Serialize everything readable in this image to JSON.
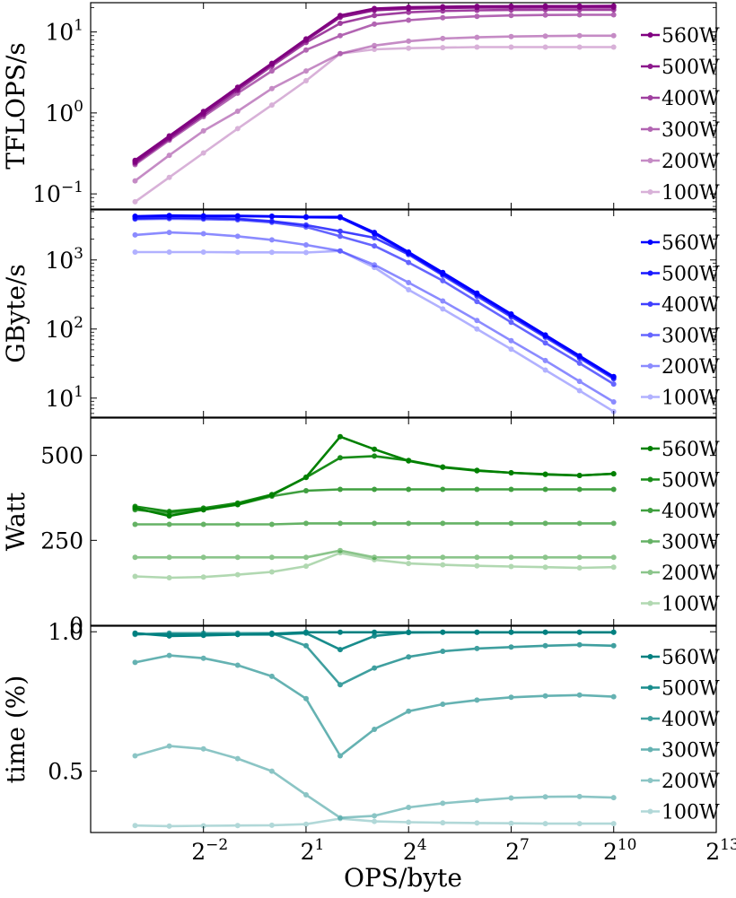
{
  "x_axis": {
    "label": "OPS/byte",
    "ticks": [
      {
        "exp": -2,
        "base": "2",
        "sup": "−2"
      },
      {
        "exp": 1,
        "base": "2",
        "sup": "1"
      },
      {
        "exp": 4,
        "base": "2",
        "sup": "4"
      },
      {
        "exp": 7,
        "base": "2",
        "sup": "7"
      },
      {
        "exp": 10,
        "base": "2",
        "sup": "10"
      },
      {
        "exp": 13,
        "base": "2",
        "sup": "13"
      }
    ]
  },
  "legend_labels": [
    "560W",
    "500W",
    "400W",
    "300W",
    "200W",
    "100W"
  ],
  "chart_data": [
    {
      "type": "line",
      "scale": "log",
      "ylabel": "TFLOPS/s",
      "ylim": [
        0.065,
        23
      ],
      "yticks": [
        {
          "v": 10,
          "base": "10",
          "sup": "1"
        },
        {
          "v": 1,
          "base": "10",
          "sup": "0"
        },
        {
          "v": 0.1,
          "base": "10",
          "sup": "−1"
        }
      ],
      "x_log2": [
        -4,
        -3,
        -2,
        -1,
        0,
        1,
        2,
        3,
        4,
        5,
        6,
        7,
        8,
        9,
        10
      ],
      "series": [
        {
          "name": "560W",
          "color": "#800080",
          "alpha": 1.0,
          "values": [
            0.26,
            0.52,
            1.04,
            2.08,
            4.1,
            8.2,
            16,
            19.5,
            20.2,
            20.5,
            20.7,
            20.8,
            20.9,
            20.9,
            21.0
          ]
        },
        {
          "name": "500W",
          "color": "#800080",
          "alpha": 0.9,
          "values": [
            0.25,
            0.5,
            1.0,
            2.0,
            4.0,
            7.9,
            15.2,
            18.5,
            19.4,
            19.8,
            20.0,
            20.1,
            20.2,
            20.2,
            20.2
          ]
        },
        {
          "name": "400W",
          "color": "#800080",
          "alpha": 0.75,
          "values": [
            0.24,
            0.48,
            0.95,
            1.9,
            3.8,
            7.4,
            12.8,
            16.0,
            17.5,
            18.2,
            18.5,
            18.7,
            18.8,
            18.8,
            18.8
          ]
        },
        {
          "name": "300W",
          "color": "#800080",
          "alpha": 0.6,
          "values": [
            0.23,
            0.46,
            0.9,
            1.75,
            3.3,
            6.0,
            9.0,
            12.5,
            14.0,
            15.0,
            15.6,
            16.0,
            16.2,
            16.3,
            16.3
          ]
        },
        {
          "name": "200W",
          "color": "#800080",
          "alpha": 0.45,
          "values": [
            0.145,
            0.3,
            0.6,
            1.05,
            2.0,
            3.3,
            5.4,
            6.8,
            7.7,
            8.3,
            8.6,
            8.8,
            8.9,
            9.0,
            9.0
          ]
        },
        {
          "name": "100W",
          "color": "#800080",
          "alpha": 0.3,
          "values": [
            0.08,
            0.16,
            0.32,
            0.64,
            1.25,
            2.5,
            5.4,
            6.1,
            6.3,
            6.4,
            6.5,
            6.5,
            6.5,
            6.5,
            6.5
          ]
        }
      ]
    },
    {
      "type": "line",
      "scale": "log",
      "ylabel": "GByte/s",
      "ylim": [
        5.3,
        5300
      ],
      "yticks": [
        {
          "v": 1000,
          "base": "10",
          "sup": "3"
        },
        {
          "v": 100,
          "base": "10",
          "sup": "2"
        },
        {
          "v": 10,
          "base": "10",
          "sup": "1"
        }
      ],
      "x_log2": [
        -4,
        -3,
        -2,
        -1,
        0,
        1,
        2,
        3,
        4,
        5,
        6,
        7,
        8,
        9,
        10
      ],
      "series": [
        {
          "name": "560W",
          "color": "#0000ff",
          "alpha": 1.0,
          "values": [
            4300,
            4400,
            4350,
            4350,
            4300,
            4200,
            4200,
            2500,
            1300,
            660,
            330,
            165,
            82,
            41,
            20.5
          ]
        },
        {
          "name": "500W",
          "color": "#0000ff",
          "alpha": 0.9,
          "values": [
            4250,
            4350,
            4300,
            4300,
            4250,
            4150,
            4100,
            2400,
            1250,
            630,
            320,
            160,
            80,
            40,
            20
          ]
        },
        {
          "name": "400W",
          "color": "#0000ff",
          "alpha": 0.75,
          "values": [
            4000,
            4100,
            4050,
            3950,
            3650,
            3200,
            2600,
            2100,
            1200,
            600,
            300,
            150,
            76,
            38,
            19
          ]
        },
        {
          "name": "300W",
          "color": "#0000ff",
          "alpha": 0.6,
          "values": [
            3900,
            3950,
            3900,
            3800,
            3500,
            3000,
            2200,
            1600,
            920,
            500,
            250,
            125,
            63,
            32,
            16
          ]
        },
        {
          "name": "200W",
          "color": "#0000ff",
          "alpha": 0.45,
          "values": [
            2300,
            2500,
            2400,
            2200,
            1950,
            1650,
            1350,
            850,
            470,
            255,
            133,
            68,
            35,
            17.5,
            8.8
          ]
        },
        {
          "name": "100W",
          "color": "#0000ff",
          "alpha": 0.3,
          "values": [
            1300,
            1300,
            1300,
            1290,
            1290,
            1280,
            1350,
            780,
            370,
            195,
            100,
            51,
            25.5,
            12.8,
            6.4
          ]
        }
      ]
    },
    {
      "type": "line",
      "scale": "linear",
      "ylabel": "Watt",
      "ylim": [
        0,
        610
      ],
      "yticks": [
        {
          "v": 500,
          "label": "500"
        },
        {
          "v": 250,
          "label": "250"
        },
        {
          "v": 0,
          "label": "0"
        }
      ],
      "x_log2": [
        -4,
        -3,
        -2,
        -1,
        0,
        1,
        2,
        3,
        4,
        5,
        6,
        7,
        8,
        9,
        10
      ],
      "series": [
        {
          "name": "560W",
          "color": "#008000",
          "alpha": 1.0,
          "values": [
            345,
            322,
            340,
            356,
            383,
            436,
            555,
            518,
            484,
            465,
            455,
            449,
            444,
            441,
            446
          ]
        },
        {
          "name": "500W",
          "color": "#008000",
          "alpha": 0.9,
          "values": [
            350,
            335,
            345,
            360,
            385,
            435,
            493,
            498,
            485,
            466,
            456,
            449,
            445,
            441,
            446
          ]
        },
        {
          "name": "400W",
          "color": "#008000",
          "alpha": 0.75,
          "values": [
            340,
            330,
            340,
            355,
            380,
            396,
            400,
            400,
            400,
            400,
            400,
            400,
            400,
            400,
            400
          ]
        },
        {
          "name": "300W",
          "color": "#008000",
          "alpha": 0.6,
          "values": [
            297,
            297,
            297,
            297,
            297,
            300,
            300,
            300,
            300,
            300,
            300,
            300,
            300,
            300,
            300
          ]
        },
        {
          "name": "200W",
          "color": "#008000",
          "alpha": 0.45,
          "values": [
            200,
            200,
            200,
            200,
            200,
            200,
            220,
            200,
            200,
            200,
            200,
            200,
            200,
            200,
            200
          ]
        },
        {
          "name": "100W",
          "color": "#008000",
          "alpha": 0.3,
          "values": [
            144,
            140,
            142,
            149,
            157,
            174,
            213,
            193,
            182,
            178,
            175,
            173,
            171,
            169,
            171
          ]
        }
      ]
    },
    {
      "type": "line",
      "scale": "linear",
      "ylabel": "time (%)",
      "ylim": [
        0.28,
        1.02
      ],
      "yticks": [
        {
          "v": 1.0,
          "label": "1.0"
        },
        {
          "v": 0.5,
          "label": "0.5"
        }
      ],
      "x_log2": [
        -4,
        -3,
        -2,
        -1,
        0,
        1,
        2,
        3,
        4,
        5,
        6,
        7,
        8,
        9,
        10
      ],
      "series": [
        {
          "name": "560W",
          "color": "#008080",
          "alpha": 1.0,
          "values": [
            0.995,
            0.985,
            0.987,
            0.99,
            0.993,
            0.998,
            0.998,
            0.998,
            0.998,
            0.998,
            0.998,
            0.998,
            0.998,
            0.998,
            0.998
          ]
        },
        {
          "name": "500W",
          "color": "#008080",
          "alpha": 0.9,
          "values": [
            0.993,
            0.99,
            0.99,
            0.99,
            0.99,
            0.995,
            0.936,
            0.985,
            0.997,
            0.998,
            0.998,
            0.998,
            0.998,
            0.998,
            0.998
          ]
        },
        {
          "name": "400W",
          "color": "#008080",
          "alpha": 0.75,
          "values": [
            0.99,
            0.995,
            0.995,
            0.995,
            0.995,
            0.95,
            0.81,
            0.87,
            0.91,
            0.93,
            0.94,
            0.945,
            0.95,
            0.953,
            0.95
          ]
        },
        {
          "name": "300W",
          "color": "#008080",
          "alpha": 0.6,
          "values": [
            0.89,
            0.915,
            0.905,
            0.88,
            0.84,
            0.76,
            0.555,
            0.65,
            0.715,
            0.74,
            0.755,
            0.765,
            0.77,
            0.773,
            0.767
          ]
        },
        {
          "name": "200W",
          "color": "#008080",
          "alpha": 0.45,
          "values": [
            0.555,
            0.59,
            0.58,
            0.545,
            0.5,
            0.415,
            0.333,
            0.34,
            0.37,
            0.385,
            0.395,
            0.404,
            0.408,
            0.409,
            0.405
          ]
        },
        {
          "name": "100W",
          "color": "#008080",
          "alpha": 0.3,
          "values": [
            0.305,
            0.303,
            0.304,
            0.305,
            0.306,
            0.31,
            0.33,
            0.32,
            0.317,
            0.315,
            0.314,
            0.313,
            0.312,
            0.312,
            0.312
          ]
        }
      ]
    }
  ]
}
